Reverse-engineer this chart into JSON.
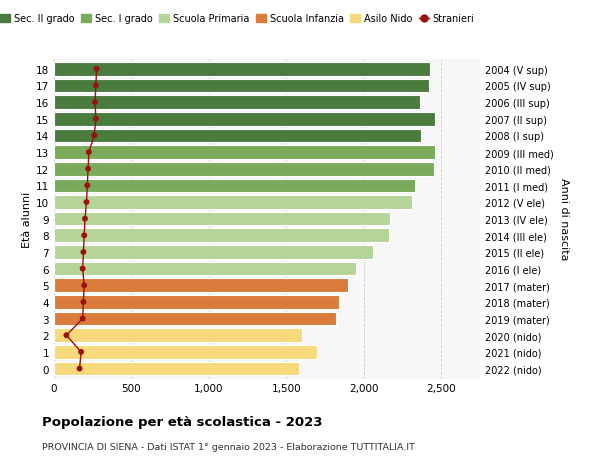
{
  "ages": [
    18,
    17,
    16,
    15,
    14,
    13,
    12,
    11,
    10,
    9,
    8,
    7,
    6,
    5,
    4,
    3,
    2,
    1,
    0
  ],
  "years": [
    "2004 (V sup)",
    "2005 (IV sup)",
    "2006 (III sup)",
    "2007 (II sup)",
    "2008 (I sup)",
    "2009 (III med)",
    "2010 (II med)",
    "2011 (I med)",
    "2012 (V ele)",
    "2013 (IV ele)",
    "2014 (III ele)",
    "2015 (II ele)",
    "2016 (I ele)",
    "2017 (mater)",
    "2018 (mater)",
    "2019 (mater)",
    "2020 (nido)",
    "2021 (nido)",
    "2022 (nido)"
  ],
  "bar_values": [
    2430,
    2420,
    2360,
    2460,
    2370,
    2460,
    2450,
    2330,
    2310,
    2170,
    2160,
    2060,
    1950,
    1900,
    1840,
    1820,
    1600,
    1700,
    1580
  ],
  "stranieri": [
    275,
    270,
    265,
    270,
    260,
    225,
    220,
    215,
    210,
    200,
    195,
    190,
    185,
    195,
    190,
    185,
    80,
    175,
    165
  ],
  "bar_colors": [
    "#4a7c3f",
    "#4a7c3f",
    "#4a7c3f",
    "#4a7c3f",
    "#4a7c3f",
    "#7aab5a",
    "#7aab5a",
    "#7aab5a",
    "#b5d49a",
    "#b5d49a",
    "#b5d49a",
    "#b5d49a",
    "#b5d49a",
    "#d97b3a",
    "#d97b3a",
    "#d97b3a",
    "#f5d97a",
    "#f5d97a",
    "#f5d97a"
  ],
  "legend_labels": [
    "Sec. II grado",
    "Sec. I grado",
    "Scuola Primaria",
    "Scuola Infanzia",
    "Asilo Nido",
    "Stranieri"
  ],
  "legend_colors": [
    "#4a7c3f",
    "#7aab5a",
    "#b5d49a",
    "#d97b3a",
    "#f5d97a",
    "#a81010"
  ],
  "ylabel": "Età alunni",
  "ylabel_right": "Anni di nascita",
  "title": "Popolazione per età scolastica - 2023",
  "subtitle": "PROVINCIA DI SIENA - Dati ISTAT 1° gennaio 2023 - Elaborazione TUTTITALIA.IT",
  "xlim": [
    0,
    2750
  ],
  "xticks": [
    0,
    500,
    1000,
    1500,
    2000,
    2500
  ],
  "xtick_labels": [
    "0",
    "500",
    "1,000",
    "1,500",
    "2,000",
    "2,500"
  ],
  "bg_color": "#f7f7f7",
  "stranieri_color": "#9b1010",
  "bar_height": 0.82,
  "grid_color": "#cccccc"
}
